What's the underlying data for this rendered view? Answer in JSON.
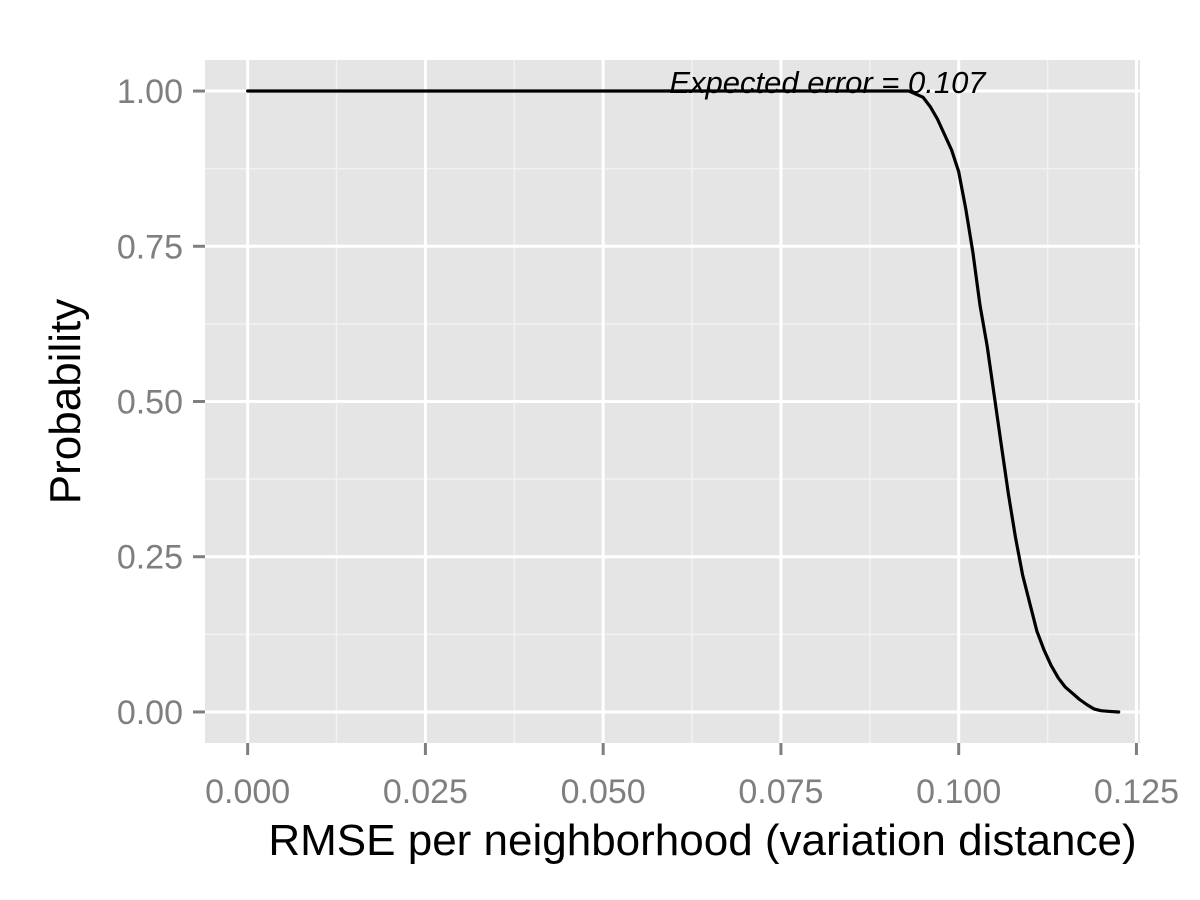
{
  "chart_data": {
    "type": "line",
    "title": "",
    "xlabel": "RMSE per neighborhood (variation distance)",
    "ylabel": "Probability",
    "xlim": [
      -0.006,
      0.1255
    ],
    "ylim": [
      -0.05,
      1.05
    ],
    "x_ticks": [
      0.0,
      0.025,
      0.05,
      0.075,
      0.1,
      0.125
    ],
    "x_tick_labels": [
      "0.000",
      "0.025",
      "0.050",
      "0.075",
      "0.100",
      "0.125"
    ],
    "y_ticks": [
      0.0,
      0.25,
      0.5,
      0.75,
      1.0
    ],
    "y_tick_labels": [
      "0.00",
      "0.25",
      "0.50",
      "0.75",
      "1.00"
    ],
    "grid": true,
    "legend": "none",
    "annotation": {
      "text": "Expected error = 0.107",
      "x": 0.1035,
      "y": 1.0
    },
    "series": [
      {
        "color": "#000000",
        "x": [
          0.0,
          0.09,
          0.093,
          0.095,
          0.096,
          0.097,
          0.098,
          0.099,
          0.1,
          0.101,
          0.102,
          0.103,
          0.104,
          0.105,
          0.106,
          0.107,
          0.108,
          0.109,
          0.11,
          0.111,
          0.112,
          0.113,
          0.114,
          0.115,
          0.116,
          0.117,
          0.118,
          0.119,
          0.12,
          0.121,
          0.1225
        ],
        "y": [
          1.0,
          1.0,
          1.0,
          0.99,
          0.975,
          0.955,
          0.93,
          0.905,
          0.87,
          0.81,
          0.74,
          0.655,
          0.59,
          0.51,
          0.43,
          0.35,
          0.28,
          0.22,
          0.175,
          0.13,
          0.1,
          0.075,
          0.055,
          0.04,
          0.03,
          0.02,
          0.012,
          0.005,
          0.002,
          0.001,
          0.0
        ]
      }
    ],
    "colors": {
      "panel_background": "#e5e5e5",
      "grid_major": "#ffffff",
      "grid_minor": "#f2f2f2",
      "tick_label": "#7f7f7f",
      "axis_tick": "#7f7f7f",
      "line": "#000000"
    }
  }
}
